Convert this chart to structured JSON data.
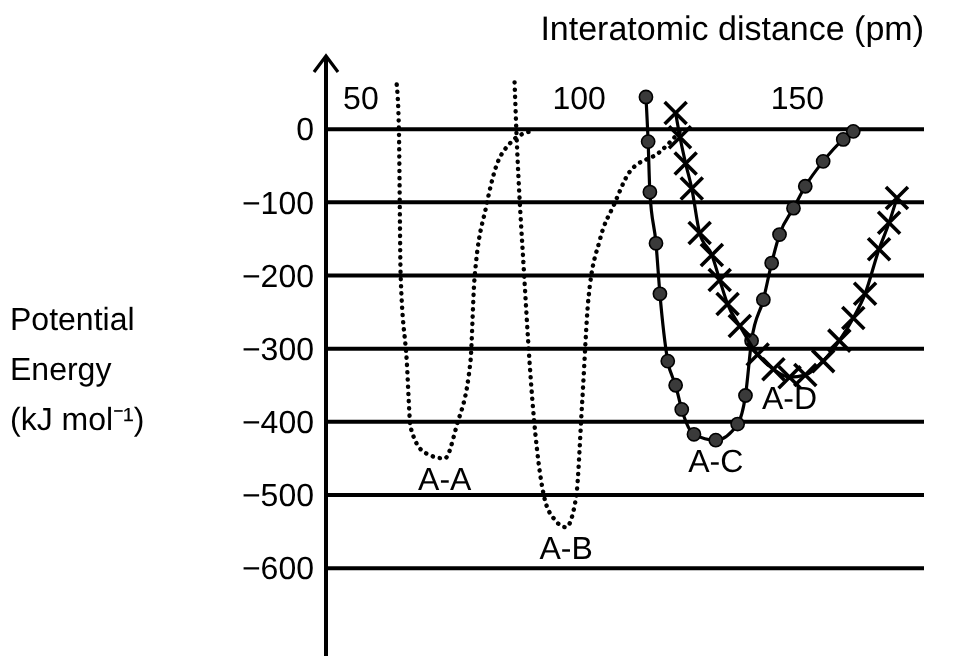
{
  "chart_data": {
    "type": "line",
    "xlabel": "Interatomic distance (pm)",
    "ylabel": "Potential Energy (kJ mol⁻¹)",
    "xlim": [
      42,
      179
    ],
    "xticks": [
      50,
      100,
      150
    ],
    "ylim": [
      -720,
      100
    ],
    "yticks": [
      0,
      -100,
      -200,
      -300,
      -400,
      -500,
      -600
    ],
    "grid": "y",
    "series": [
      {
        "name": "A-A",
        "color": "#000000",
        "line_style": "dotted",
        "marker": "none",
        "x": [
          58.2,
          58.7,
          59.1,
          60.5,
          61.4,
          64.6,
          69.2,
          71.9,
          75.1,
          76.0,
          78.8,
          80.6,
          84.2,
          88.8
        ],
        "values": [
          61,
          0,
          -200,
          -317,
          -408,
          -442,
          -450,
          -406,
          -317,
          -206,
          -103,
          -58,
          -19,
          -3
        ]
      },
      {
        "name": "A-B",
        "color": "#000000",
        "line_style": "dotted",
        "marker": "none",
        "x": [
          85.2,
          85.6,
          87.4,
          89.3,
          92.0,
          94.3,
          97.0,
          99.3,
          100.7,
          102.1,
          104.8,
          108.0,
          111.6,
          118.5,
          123.1
        ],
        "values": [
          64,
          0,
          -200,
          -372,
          -503,
          -533,
          -544,
          -503,
          -372,
          -233,
          -150,
          -103,
          -58,
          -31,
          -3
        ]
      },
      {
        "name": "A-C",
        "color": "#000000",
        "line_style": "solid",
        "marker": "circle",
        "x": [
          115.3,
          115.8,
          116.2,
          117.6,
          118.5,
          120.3,
          122.1,
          123.5,
          126.3,
          131.3,
          136.3,
          138.1,
          139.5,
          142.2,
          144.1,
          145.9,
          149.1,
          151.8,
          155.9,
          160.5,
          162.8
        ],
        "values": [
          44,
          -17,
          -86,
          -156,
          -225,
          -317,
          -350,
          -383,
          -417,
          -425,
          -403,
          -364,
          -289,
          -233,
          -183,
          -144,
          -108,
          -78,
          -44,
          -14,
          -3
        ]
      },
      {
        "name": "A-D",
        "color": "#000000",
        "line_style": "solid",
        "marker": "cross",
        "x": [
          122.1,
          123.1,
          124.4,
          125.8,
          127.6,
          130.4,
          132.2,
          134.0,
          136.8,
          140.9,
          144.5,
          148.2,
          151.8,
          155.9,
          159.6,
          162.8,
          165.5,
          168.7,
          171.0,
          172.8
        ],
        "values": [
          22,
          -11,
          -47,
          -81,
          -142,
          -172,
          -206,
          -239,
          -269,
          -308,
          -328,
          -339,
          -336,
          -317,
          -289,
          -258,
          -225,
          -164,
          -128,
          -94
        ]
      }
    ]
  }
}
